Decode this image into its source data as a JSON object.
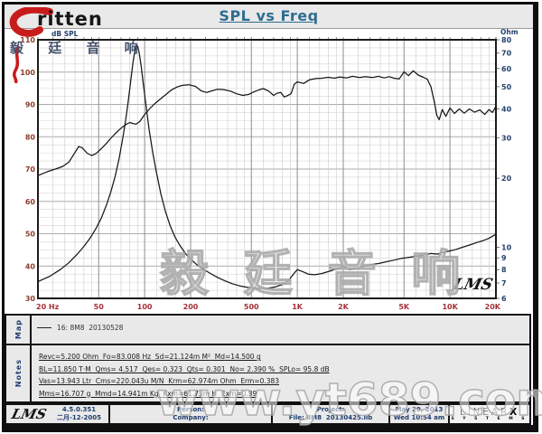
{
  "header": {
    "title": "SPL vs Freq"
  },
  "logo": {
    "brand": "ritten",
    "subtitle": "毅 廷 音 响",
    "icon": "red-e-swoosh"
  },
  "watermarks": {
    "chart": "毅 廷 音 响",
    "bottom": "www.yt689.com",
    "lms_script": "LMS"
  },
  "chart_data": {
    "type": "line",
    "title": "SPL vs Freq",
    "x_axis": {
      "scale": "log",
      "min": 20,
      "max": 20000,
      "unit": "Hz",
      "tick_values": [
        20,
        50,
        100,
        200,
        500,
        1000,
        2000,
        5000,
        10000,
        20000
      ],
      "tick_labels": [
        "20 Hz",
        "50",
        "100",
        "200",
        "500",
        "1K",
        "2K",
        "5K",
        "10K",
        "20K"
      ]
    },
    "y_left": {
      "label": "dB SPL",
      "scale": "linear",
      "min": 30,
      "max": 110,
      "major_step": 10,
      "minor_step": 2.5,
      "ticks": [
        110,
        100,
        90,
        80,
        70,
        60,
        50,
        40,
        30
      ]
    },
    "y_right": {
      "label": "Ohm",
      "scale": "log",
      "min": 6,
      "max": 80,
      "ticks": [
        80,
        70,
        60,
        50,
        40,
        30,
        20,
        10,
        9,
        8,
        7,
        6
      ]
    },
    "grid": true,
    "legend_position": "map-panel",
    "series": [
      {
        "name": "16: 8M8  20130528 (SPL)",
        "axis": "left",
        "unit": "dB",
        "points": [
          [
            20,
            68
          ],
          [
            23,
            69.2
          ],
          [
            26,
            70
          ],
          [
            29,
            70.8
          ],
          [
            32,
            72.2
          ],
          [
            35,
            75.2
          ],
          [
            37,
            77
          ],
          [
            39,
            76.6
          ],
          [
            42,
            74.9
          ],
          [
            45,
            74.2
          ],
          [
            48,
            74.8
          ],
          [
            52,
            76.3
          ],
          [
            56,
            77.9
          ],
          [
            60,
            79.5
          ],
          [
            64,
            80.9
          ],
          [
            68,
            82.1
          ],
          [
            72,
            83.1
          ],
          [
            76,
            83.9
          ],
          [
            80,
            84.4
          ],
          [
            84,
            84.1
          ],
          [
            88,
            83.9
          ],
          [
            93,
            84.7
          ],
          [
            100,
            86.9
          ],
          [
            108,
            88.7
          ],
          [
            117,
            90.3
          ],
          [
            127,
            91.7
          ],
          [
            138,
            93.1
          ],
          [
            150,
            94.5
          ],
          [
            163,
            95.4
          ],
          [
            177,
            95.9
          ],
          [
            195,
            96.1
          ],
          [
            215,
            95.6
          ],
          [
            235,
            94.2
          ],
          [
            255,
            93.7
          ],
          [
            275,
            94.2
          ],
          [
            300,
            94.7
          ],
          [
            330,
            94.6
          ],
          [
            365,
            94.1
          ],
          [
            400,
            93.3
          ],
          [
            440,
            92.8
          ],
          [
            480,
            93.1
          ],
          [
            520,
            93.9
          ],
          [
            560,
            94.5
          ],
          [
            600,
            94.9
          ],
          [
            650,
            94.1
          ],
          [
            700,
            92.8
          ],
          [
            740,
            93.5
          ],
          [
            780,
            93.7
          ],
          [
            820,
            92.3
          ],
          [
            860,
            92.7
          ],
          [
            910,
            93.3
          ],
          [
            955,
            96.2
          ],
          [
            1000,
            97
          ],
          [
            1100,
            96.5
          ],
          [
            1200,
            97.6
          ],
          [
            1320,
            98
          ],
          [
            1450,
            98.1
          ],
          [
            1600,
            98.4
          ],
          [
            1750,
            98.1
          ],
          [
            1900,
            98.5
          ],
          [
            2100,
            98.2
          ],
          [
            2300,
            98.7
          ],
          [
            2550,
            98.3
          ],
          [
            2800,
            98.6
          ],
          [
            3100,
            98.3
          ],
          [
            3400,
            98.7
          ],
          [
            3700,
            98.2
          ],
          [
            4000,
            98.6
          ],
          [
            4300,
            98.1
          ],
          [
            4650,
            97.9
          ],
          [
            5000,
            100.1
          ],
          [
            5350,
            98.9
          ],
          [
            5750,
            100.4
          ],
          [
            6200,
            99.1
          ],
          [
            6700,
            98.4
          ],
          [
            7100,
            97.8
          ],
          [
            7500,
            95.5
          ],
          [
            7900,
            90.8
          ],
          [
            8200,
            86.6
          ],
          [
            8500,
            85.3
          ],
          [
            8900,
            88.4
          ],
          [
            9400,
            86.3
          ],
          [
            10000,
            88.9
          ],
          [
            10700,
            87.2
          ],
          [
            11500,
            88.6
          ],
          [
            12400,
            87.3
          ],
          [
            13400,
            88.6
          ],
          [
            14500,
            87.6
          ],
          [
            15700,
            88.3
          ],
          [
            16900,
            86.9
          ],
          [
            18000,
            88.4
          ],
          [
            19000,
            87.5
          ],
          [
            20000,
            89.4
          ]
        ]
      },
      {
        "name": "Impedance",
        "axis": "right",
        "unit": "Ohm",
        "points": [
          [
            20,
            7.1
          ],
          [
            24,
            7.5
          ],
          [
            28,
            8
          ],
          [
            32,
            8.6
          ],
          [
            36,
            9.3
          ],
          [
            40,
            10.1
          ],
          [
            44,
            11
          ],
          [
            48,
            12.1
          ],
          [
            52,
            13.4
          ],
          [
            56,
            15.2
          ],
          [
            60,
            17.4
          ],
          [
            64,
            20.3
          ],
          [
            68,
            24.3
          ],
          [
            72,
            30
          ],
          [
            75,
            35.5
          ],
          [
            78,
            43
          ],
          [
            81,
            53
          ],
          [
            84,
            64
          ],
          [
            86,
            71
          ],
          [
            88,
            75.5
          ],
          [
            90,
            75
          ],
          [
            92,
            70.5
          ],
          [
            95,
            61
          ],
          [
            98,
            51.5
          ],
          [
            102,
            41.5
          ],
          [
            107,
            32.5
          ],
          [
            113,
            25.8
          ],
          [
            120,
            20.9
          ],
          [
            128,
            17
          ],
          [
            137,
            14.3
          ],
          [
            147,
            12.4
          ],
          [
            158,
            11.1
          ],
          [
            170,
            10.2
          ],
          [
            185,
            9.4
          ],
          [
            200,
            8.9
          ],
          [
            220,
            8.4
          ],
          [
            245,
            8
          ],
          [
            270,
            7.7
          ],
          [
            300,
            7.4
          ],
          [
            335,
            7.15
          ],
          [
            375,
            6.95
          ],
          [
            420,
            6.8
          ],
          [
            470,
            6.7
          ],
          [
            520,
            6.65
          ],
          [
            580,
            6.62
          ],
          [
            650,
            6.65
          ],
          [
            720,
            6.73
          ],
          [
            800,
            6.9
          ],
          [
            880,
            7.2
          ],
          [
            950,
            7.7
          ],
          [
            1000,
            8
          ],
          [
            1080,
            7.85
          ],
          [
            1180,
            7.65
          ],
          [
            1300,
            7.6
          ],
          [
            1450,
            7.7
          ],
          [
            1650,
            7.9
          ],
          [
            1850,
            8.1
          ],
          [
            2000,
            8.3
          ],
          [
            2200,
            8
          ],
          [
            2450,
            8.1
          ],
          [
            2700,
            8.25
          ],
          [
            3000,
            8.4
          ],
          [
            3400,
            8.5
          ],
          [
            3800,
            8.65
          ],
          [
            4300,
            8.8
          ],
          [
            4800,
            8.95
          ],
          [
            5400,
            9.05
          ],
          [
            6000,
            9.15
          ],
          [
            6700,
            9.25
          ],
          [
            7500,
            9.4
          ],
          [
            8300,
            9.35
          ],
          [
            9200,
            9.55
          ],
          [
            10000,
            9.65
          ],
          [
            11000,
            9.8
          ],
          [
            12000,
            10
          ],
          [
            13500,
            10.25
          ],
          [
            15000,
            10.5
          ],
          [
            16500,
            10.7
          ],
          [
            18000,
            10.95
          ],
          [
            20000,
            11.4
          ]
        ]
      }
    ]
  },
  "map_panel": {
    "label": "Map",
    "legend_text": "16: 8M8  20130528"
  },
  "notes_panel": {
    "label": "Notes",
    "lines": [
      "Revc=5.200 Ohm  Fo=83.008 Hz  Sd=21.124m M²  Md=14.500 g",
      "BL=11.850 T·M  Qms= 4.517  Qes= 0.323  Qts= 0.301  No= 2.390 %  SPLo= 95.8 dB",
      "Vas=13.943 Ltr  Cms=220.043u M/N  Krm=62.974m Ohm  Erm=0.383",
      "Mms=16.707 g  Mmd=14.941m Kg  Kxm=61.73m H  Exm=0.39"
    ]
  },
  "footer": {
    "lms_logo": "LMS",
    "version": "4.5.0.351",
    "date_cn": "二月-12-2005",
    "person_label": "Person:",
    "company_label": "Company:",
    "project_label": "Project:",
    "file_label": "File: 8M8  20130425.lib",
    "date": "May 29, 2013",
    "time": "Wed 10:54 am",
    "brand_linear": "LINEAR",
    "brand_x": "X",
    "brand_systems": "S Y S T E M S"
  },
  "colors": {
    "curve": "#161616",
    "grid_minor_v": "#cbcbcb",
    "grid_major_v": "#8e8e8e",
    "grid_minor_h": "#e1d1d1",
    "grid_major_h": "#ababab",
    "axis_text_x": "#a63038",
    "axis_text_left": "#8f3a2a",
    "axis_text_right": "#24416e",
    "plot_border": "#1b1b1b",
    "title": "#2e6d91",
    "accent_red": "#c81c1c",
    "navy": "#1e3c6e"
  }
}
